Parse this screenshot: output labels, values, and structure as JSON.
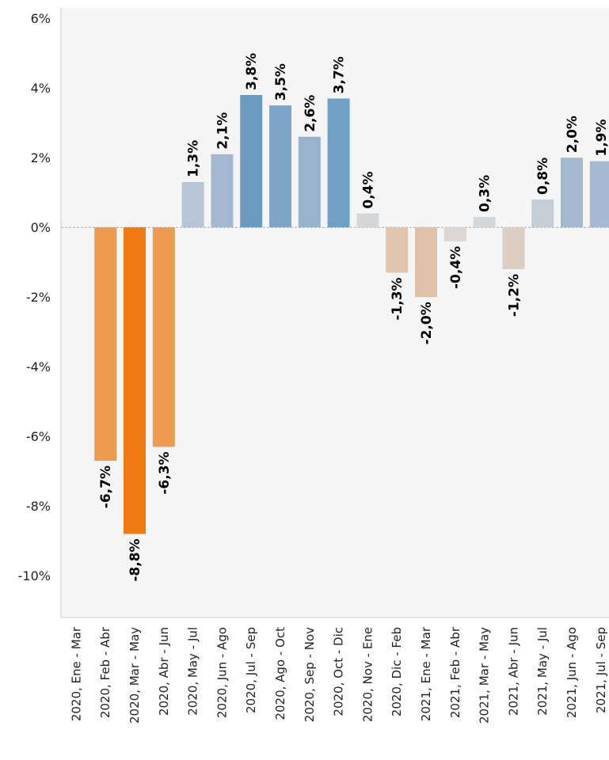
{
  "chart_data": {
    "type": "bar",
    "categories": [
      "2020, Ene - Mar",
      "2020, Feb - Abr",
      "2020, Mar - May",
      "2020, Abr - Jun",
      "2020, May - Jul",
      "2020, Jun - Ago",
      "2020, Jul - Sep",
      "2020, Ago - Oct",
      "2020, Sep - Nov",
      "2020, Oct - Dic",
      "2020, Nov - Ene",
      "2020, Dic - Feb",
      "2021, Ene - Mar",
      "2021, Feb - Abr",
      "2021, Mar - May",
      "2021, Abr - Jun",
      "2021, May - Jul",
      "2021, Jun - Ago",
      "2021, Jul - Sep"
    ],
    "values": [
      null,
      -6.7,
      -8.8,
      -6.3,
      1.3,
      2.1,
      3.8,
      3.5,
      2.6,
      3.7,
      0.4,
      -1.3,
      -2.0,
      -0.4,
      0.3,
      -1.2,
      0.8,
      2.0,
      1.9
    ],
    "value_labels": [
      null,
      "-6,7%",
      "-8,8%",
      "-6,3%",
      "1,3%",
      "2,1%",
      "3,8%",
      "3,5%",
      "2,6%",
      "3,7%",
      "0,4%",
      "-1,3%",
      "-2,0%",
      "-0,4%",
      "0,3%",
      "-1,2%",
      "0,8%",
      "2,0%",
      "1,9%"
    ],
    "colors": [
      null,
      "#ee9a4f",
      "#f07912",
      "#ee9a50",
      "#b5c5d6",
      "#a3b9d0",
      "#6c9bc2",
      "#7ea5c7",
      "#97b2cd",
      "#71a0c6",
      "#d5d6d7",
      "#e0c4ae",
      "#e0c0a6",
      "#dcd6d2",
      "#d5d8db",
      "#ddcec4",
      "#c6cfd8",
      "#a3b9d0",
      "#a5bad0"
    ],
    "ylim": [
      -11.2,
      6.3
    ],
    "yticks": [
      {
        "value": 6,
        "label": "6%"
      },
      {
        "value": 4,
        "label": "4%"
      },
      {
        "value": 2,
        "label": "2%"
      },
      {
        "value": 0,
        "label": "0%"
      },
      {
        "value": -2,
        "label": "-2%"
      },
      {
        "value": -4,
        "label": "-4%"
      },
      {
        "value": -6,
        "label": "-6%"
      },
      {
        "value": -8,
        "label": "-8%"
      },
      {
        "value": -10,
        "label": "-10%"
      }
    ],
    "grid": false
  }
}
